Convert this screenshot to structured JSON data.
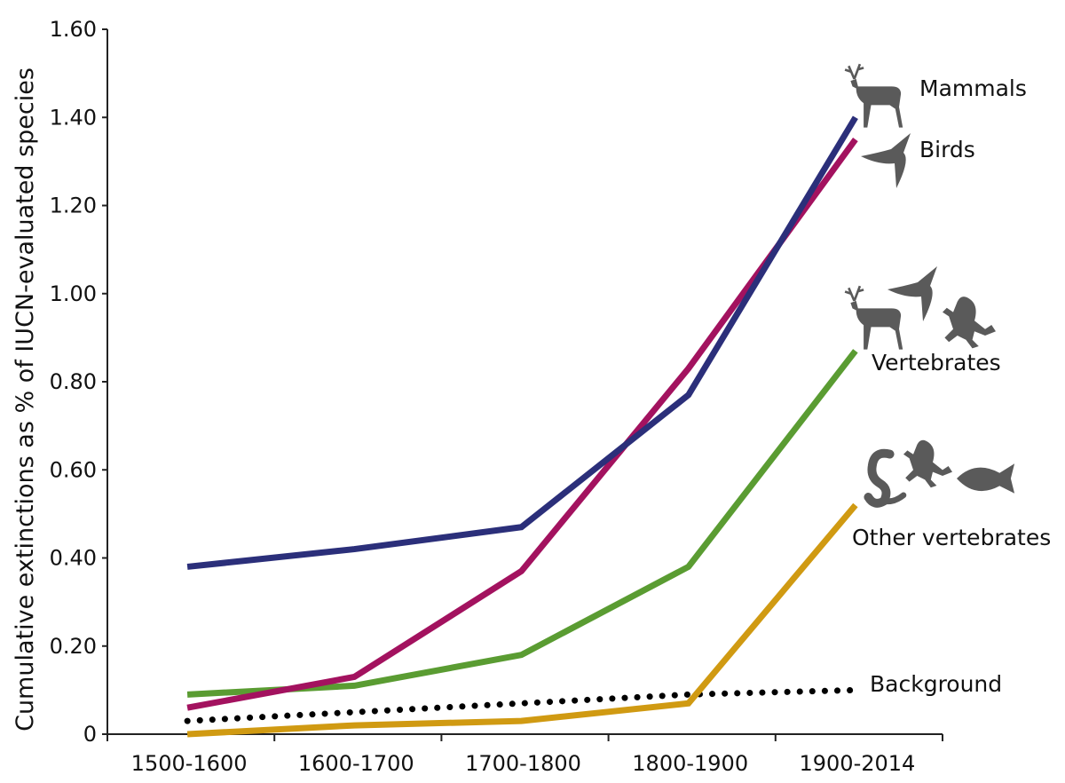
{
  "chart_data": {
    "type": "line",
    "title": "",
    "xlabel": "",
    "ylabel": "Cumulative extinctions as % of IUCN-evaluated species",
    "categories": [
      "1500-1600",
      "1600-1700",
      "1700-1800",
      "1800-1900",
      "1900-2014"
    ],
    "ylim": [
      0,
      1.6
    ],
    "yticks": [
      "0",
      "0.20",
      "0.40",
      "0.60",
      "0.80",
      "1.00",
      "1.20",
      "1.40",
      "1.60"
    ],
    "grid": false,
    "legend": "inline labels at line ends",
    "series": [
      {
        "name": "Mammals",
        "color": "#2b2f7a",
        "style": "solid",
        "icon": "deer-icon",
        "values": [
          0.38,
          0.42,
          0.47,
          0.77,
          1.4
        ]
      },
      {
        "name": "Birds",
        "color": "#a3125f",
        "style": "solid",
        "icon": "swallow-icon",
        "values": [
          0.06,
          0.13,
          0.37,
          0.83,
          1.35
        ]
      },
      {
        "name": "Vertebrates",
        "color": "#5a9c32",
        "style": "solid",
        "icon": "deer-bird-frog-icon",
        "values": [
          0.09,
          0.11,
          0.18,
          0.38,
          0.87
        ]
      },
      {
        "name": "Other vertebrates",
        "color": "#d09a12",
        "style": "solid",
        "icon": "snake-frog-fish-icon",
        "values": [
          0.0,
          0.02,
          0.03,
          0.07,
          0.52
        ]
      },
      {
        "name": "Background",
        "color": "#000000",
        "style": "dotted",
        "values": [
          0.03,
          0.05,
          0.07,
          0.09,
          0.1
        ]
      }
    ]
  }
}
